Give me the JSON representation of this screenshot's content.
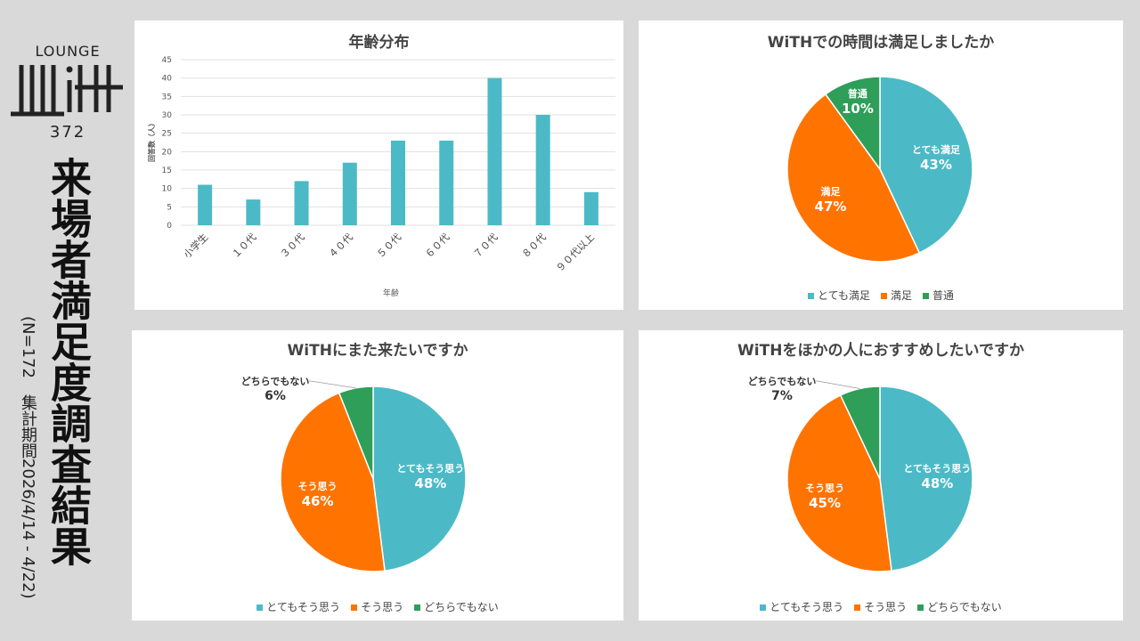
{
  "sidebar": {
    "logo_top": "LOUNGE",
    "logo_mark": "WiTH",
    "logo_number": "372",
    "title": "来場者満足度調査結果",
    "subtitle": "(N=172　集計期間2026/4/14 - 4/22)"
  },
  "colors": {
    "teal": "#4bbac6",
    "orange": "#ff7300",
    "green": "#2e9e58",
    "background": "#d9d9d9"
  },
  "chart_data": [
    {
      "type": "bar",
      "title": "年齢分布",
      "xlabel": "年齢",
      "ylabel": "回答数（人）",
      "categories": [
        "小学生",
        "１０代",
        "３０代",
        "４０代",
        "５０代",
        "６０代",
        "７０代",
        "８０代",
        "９０代以上"
      ],
      "values": [
        11,
        7,
        12,
        17,
        23,
        23,
        40,
        30,
        9
      ],
      "ylim": [
        0,
        45
      ],
      "yticks": [
        "0",
        "5",
        "10",
        "15",
        "20",
        "25",
        "30",
        "35",
        "40",
        "45"
      ],
      "grid": true,
      "color": "#4bbac6"
    },
    {
      "type": "pie",
      "title": "WiTHでの時間は満足しましたか",
      "slices": [
        {
          "label": "とても満足",
          "value": 43,
          "text": "43%",
          "color": "#4bbac6"
        },
        {
          "label": "満足",
          "value": 47,
          "text": "47%",
          "color": "#ff7300"
        },
        {
          "label": "普通",
          "value": 10,
          "text": "10%",
          "color": "#2e9e58"
        }
      ],
      "legend": "bottom"
    },
    {
      "type": "pie",
      "title": "WiTHにまた来たいですか",
      "slices": [
        {
          "label": "とてもそう思う",
          "value": 48,
          "text": "48%",
          "color": "#4bbac6"
        },
        {
          "label": "そう思う",
          "value": 46,
          "text": "46%",
          "color": "#ff7300"
        },
        {
          "label": "どちらでもない",
          "value": 6,
          "text": "6%",
          "color": "#2e9e58",
          "outside": true
        }
      ],
      "legend": "bottom"
    },
    {
      "type": "pie",
      "title": "WiTHをほかの人におすすめしたいですか",
      "slices": [
        {
          "label": "とてもそう思う",
          "value": 48,
          "text": "48%",
          "color": "#4bbac6"
        },
        {
          "label": "そう思う",
          "value": 45,
          "text": "45%",
          "color": "#ff7300"
        },
        {
          "label": "どちらでもない",
          "value": 7,
          "text": "7%",
          "color": "#2e9e58",
          "outside": true
        }
      ],
      "legend": "bottom"
    }
  ]
}
